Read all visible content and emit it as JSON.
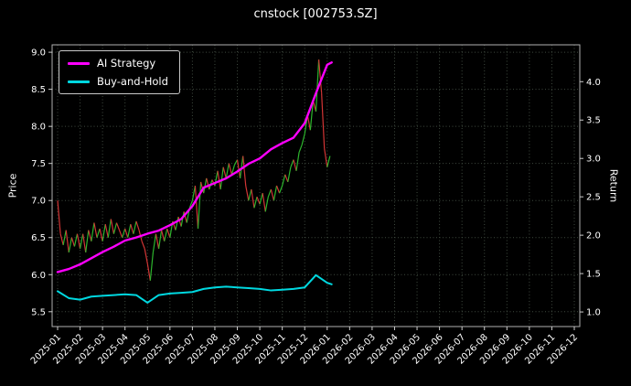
{
  "title": "cnstock [002753.SZ]",
  "chart_data": {
    "type": "line",
    "title": "cnstock [002753.SZ]",
    "background": "#000000",
    "text_color": "#ffffff",
    "grid": {
      "on": true,
      "color": "#3f4a3f",
      "style": "dotted"
    },
    "x_axis": {
      "tick_labels": [
        "2025-01",
        "2025-02",
        "2025-03",
        "2025-04",
        "2025-05",
        "2025-06",
        "2025-07",
        "2025-08",
        "2025-09",
        "2025-10",
        "2025-11",
        "2025-12",
        "2026-01",
        "2026-02",
        "2026-03",
        "2026-04",
        "2026-05",
        "2026-06",
        "2026-07",
        "2026-08",
        "2026-09",
        "2026-10",
        "2026-11",
        "2026-12"
      ]
    },
    "left_axis": {
      "label": "Price",
      "ticks": [
        5.5,
        6.0,
        6.5,
        7.0,
        7.5,
        8.0,
        8.5,
        9.0
      ],
      "range": [
        5.3,
        9.1
      ]
    },
    "right_axis": {
      "label": "Return",
      "ticks": [
        1.0,
        1.5,
        2.0,
        2.5,
        3.0,
        3.5,
        4.0
      ],
      "range": [
        0.81,
        4.48
      ]
    },
    "legend": {
      "position": "upper left"
    },
    "series": [
      {
        "name": "AI Strategy",
        "color": "#ff00ff",
        "axis": "right",
        "x": [
          0,
          0.5,
          1,
          1.5,
          2,
          2.5,
          3,
          3.5,
          4,
          4.5,
          5,
          5.5,
          6,
          6.5,
          7,
          7.5,
          8,
          8.5,
          9,
          9.5,
          10,
          10.5,
          11,
          11.5,
          12,
          12.2
        ],
        "y": [
          1.52,
          1.56,
          1.62,
          1.7,
          1.78,
          1.85,
          1.93,
          1.97,
          2.02,
          2.06,
          2.13,
          2.21,
          2.38,
          2.62,
          2.68,
          2.74,
          2.83,
          2.93,
          3.0,
          3.12,
          3.2,
          3.27,
          3.46,
          3.85,
          4.22,
          4.25
        ]
      },
      {
        "name": "Buy-and-Hold",
        "color": "#00d8e0",
        "axis": "right",
        "x": [
          0,
          0.5,
          1,
          1.5,
          2,
          2.5,
          3,
          3.5,
          4,
          4.5,
          5,
          5.5,
          6,
          6.5,
          7,
          7.5,
          8,
          8.5,
          9,
          9.5,
          10,
          10.5,
          11,
          11.5,
          12,
          12.2
        ],
        "y": [
          1.27,
          1.18,
          1.16,
          1.2,
          1.21,
          1.22,
          1.23,
          1.22,
          1.12,
          1.22,
          1.24,
          1.25,
          1.26,
          1.3,
          1.32,
          1.33,
          1.32,
          1.31,
          1.3,
          1.28,
          1.29,
          1.3,
          1.32,
          1.48,
          1.38,
          1.36
        ]
      },
      {
        "name": "Price",
        "type": "updown-line",
        "axis": "left",
        "up_color": "#2db52d",
        "down_color": "#d23535",
        "x_start": 0,
        "x_step": 0.125,
        "values": [
          7.0,
          6.55,
          6.4,
          6.6,
          6.3,
          6.5,
          6.38,
          6.55,
          6.35,
          6.55,
          6.3,
          6.6,
          6.45,
          6.7,
          6.5,
          6.62,
          6.45,
          6.68,
          6.5,
          6.75,
          6.55,
          6.7,
          6.6,
          6.5,
          6.62,
          6.5,
          6.68,
          6.55,
          6.72,
          6.6,
          6.45,
          6.35,
          6.15,
          5.92,
          6.3,
          6.55,
          6.35,
          6.6,
          6.45,
          6.62,
          6.5,
          6.72,
          6.6,
          6.78,
          6.65,
          6.85,
          6.7,
          6.9,
          7.0,
          7.2,
          6.62,
          7.25,
          7.1,
          7.3,
          7.15,
          7.28,
          7.2,
          7.4,
          7.15,
          7.45,
          7.3,
          7.5,
          7.35,
          7.48,
          7.55,
          7.3,
          7.6,
          7.2,
          7.0,
          7.15,
          6.9,
          7.05,
          6.95,
          7.1,
          6.85,
          7.05,
          7.15,
          7.0,
          7.2,
          7.1,
          7.2,
          7.35,
          7.25,
          7.45,
          7.55,
          7.4,
          7.65,
          7.75,
          7.9,
          8.15,
          7.95,
          8.35,
          8.2,
          8.9,
          8.45,
          7.7,
          7.45,
          7.6
        ]
      }
    ]
  }
}
